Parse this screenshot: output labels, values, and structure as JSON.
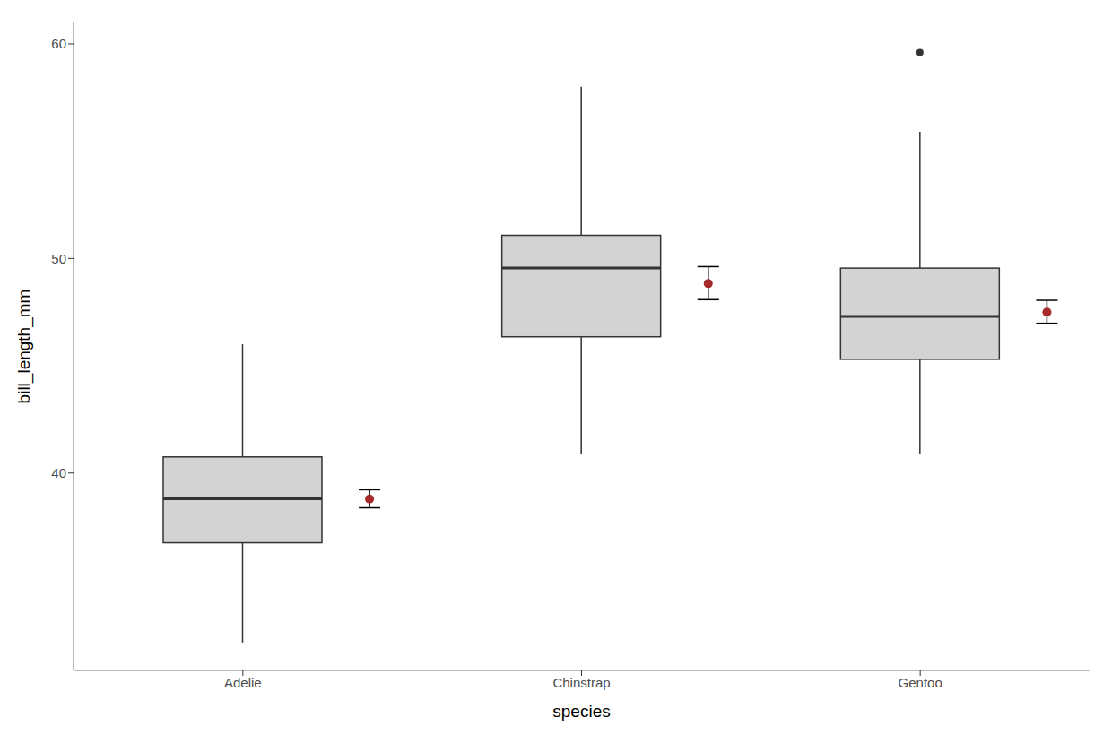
{
  "chart_data": {
    "type": "boxplot",
    "x_label": "species",
    "y_label": "bill_length_mm",
    "categories": [
      "Adelie",
      "Chinstrap",
      "Gentoo"
    ],
    "ylim": [
      30.8,
      61.0
    ],
    "yticks": [
      40,
      50,
      60
    ],
    "grid": false,
    "series": [
      {
        "type": "boxplot",
        "color": "#d3d3d3",
        "values": [
          {
            "min": 32.1,
            "q1": 36.75,
            "median": 38.8,
            "q3": 40.75,
            "max": 46.0,
            "outliers": []
          },
          {
            "min": 40.9,
            "q1": 46.35,
            "median": 49.55,
            "q3": 51.08,
            "max": 58.0,
            "outliers": []
          },
          {
            "min": 40.9,
            "q1": 45.3,
            "median": 47.3,
            "q3": 49.55,
            "max": 55.9,
            "outliers": [
              59.6
            ]
          }
        ]
      },
      {
        "type": "point",
        "color": "#a52a2a",
        "values": [
          38.79,
          48.83,
          47.5
        ],
        "error_low": [
          38.38,
          48.08,
          46.98
        ],
        "error_high": [
          39.22,
          49.62,
          48.05
        ]
      }
    ]
  }
}
